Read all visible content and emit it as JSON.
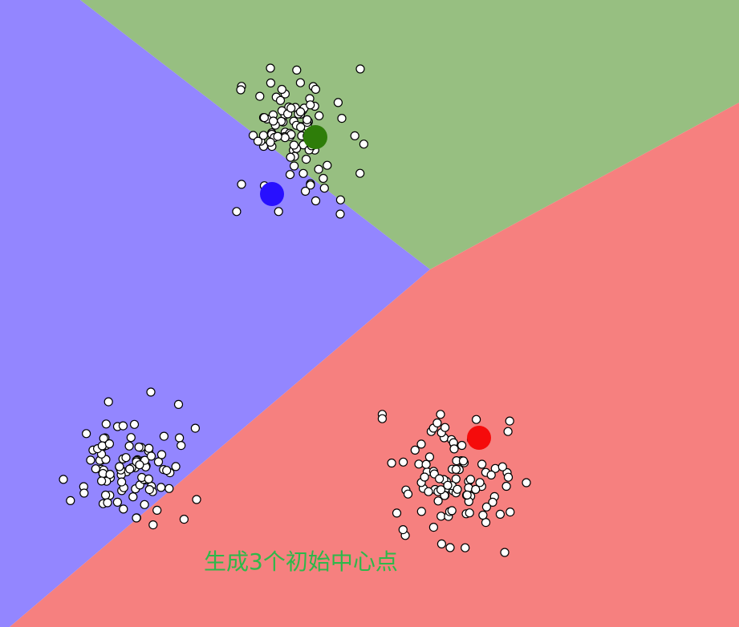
{
  "caption": {
    "text": "生成3个初始中心点",
    "color": "#2db84a"
  },
  "region_colors": {
    "green": "#97bf81",
    "blue": "#9386ff",
    "red": "#f6807f"
  },
  "point_style": {
    "fill": "#ffffff",
    "stroke": "#000000"
  },
  "centroids": [
    {
      "name": "green-centroid",
      "color": "#2e7d09"
    },
    {
      "name": "blue-centroid",
      "color": "#2810ff"
    },
    {
      "name": "red-centroid",
      "color": "#f50b0b"
    }
  ]
}
